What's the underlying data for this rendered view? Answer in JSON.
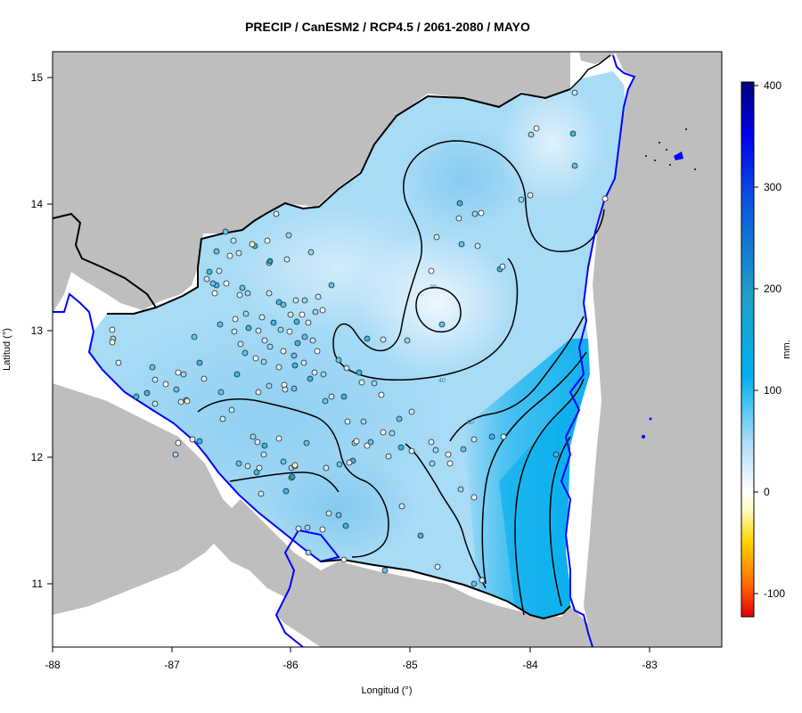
{
  "title": "PRECIP / CanESM2 / RCP4.5 / 2061-2080 / MAYO",
  "xlabel": "Longitud (°)",
  "ylabel": "Latitud (°)",
  "colorbar_label": "mm.",
  "x_ticks": [
    "-88",
    "-87",
    "-86",
    "-85",
    "-84",
    "-83"
  ],
  "y_ticks": [
    "11",
    "12",
    "13",
    "14",
    "15"
  ],
  "colorbar_ticks": [
    "400",
    "300",
    "200",
    "100",
    "0",
    "-100"
  ],
  "contour_labels": [
    "20",
    "40",
    "60"
  ],
  "colors": {
    "land_background": "#bebebe",
    "coastline": "#0000ff",
    "border": "#000000",
    "precip_low": "#e6f3fc",
    "precip_mid": "#7fcbf0",
    "precip_high": "#00b0ef"
  },
  "map_data": {
    "type": "filled-contour-map",
    "variable": "PRECIP",
    "model": "CanESM2",
    "scenario": "RCP4.5",
    "period": "2061-2080",
    "month": "MAYO",
    "lon_range": [
      -88,
      -82.4
    ],
    "lat_range": [
      10.5,
      15.2
    ],
    "colorbar_range": [
      -120,
      400
    ],
    "units": "mm."
  }
}
